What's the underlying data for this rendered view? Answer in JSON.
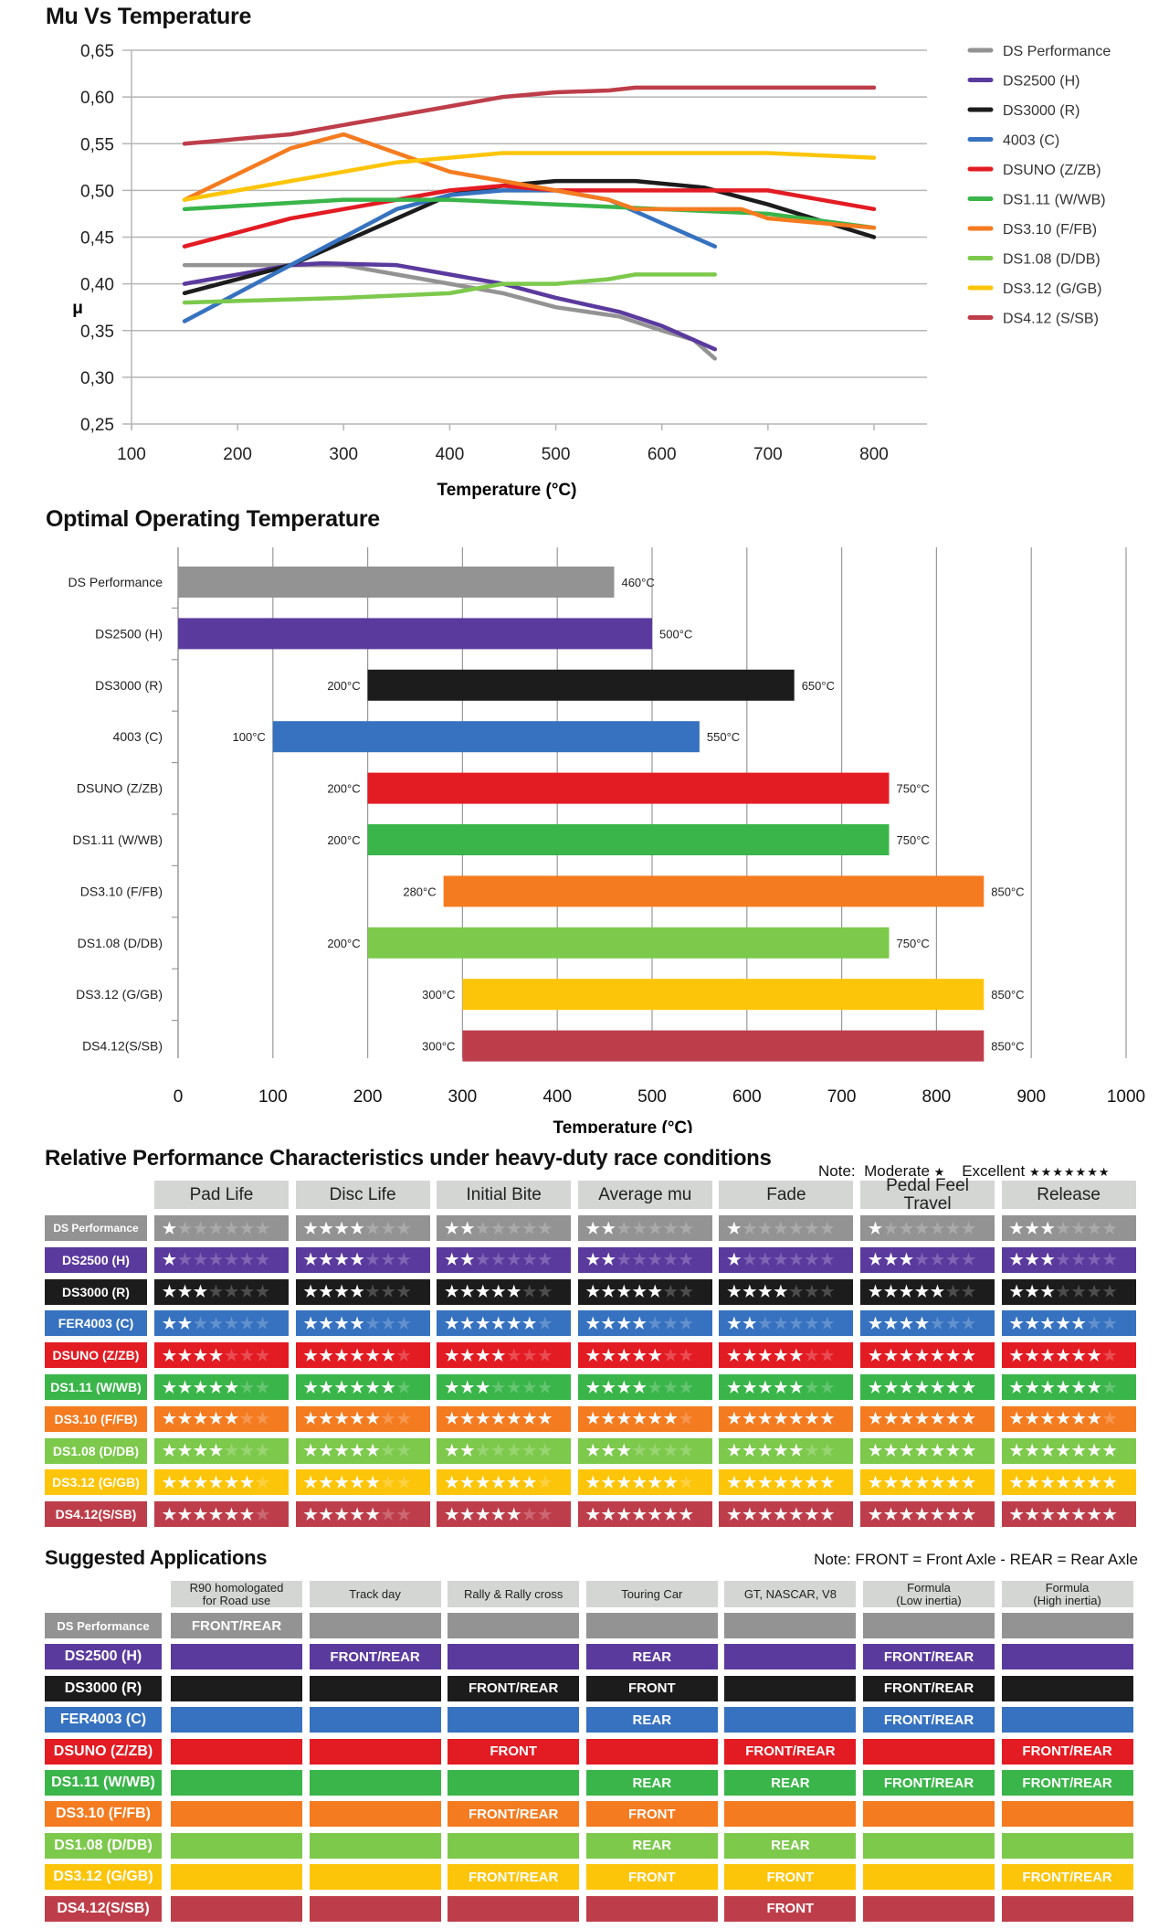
{
  "colors": {
    "DS Performance": "#939393",
    "DS2500": "#5b3a9e",
    "DS3000": "#1c1c1c",
    "4003": "#3672c0",
    "DSUNO": "#e31b23",
    "DS1.11": "#3ab54a",
    "DS3.10": "#f47b20",
    "DS1.08": "#7dc94c",
    "DS3.12": "#fcc50a",
    "DS4.12": "#bd3e4a",
    "header_bg": "#d3d6d3"
  },
  "color_keys": [
    "DS Performance",
    "DS2500",
    "DS3000",
    "4003",
    "DSUNO",
    "DS1.11",
    "DS3.10",
    "DS1.08",
    "DS3.12",
    "DS4.12"
  ],
  "chart_data": [
    {
      "type": "line",
      "title": "Mu Vs Temperature",
      "xlabel": "Temperature (°C)",
      "ylabel": "μ",
      "xlim": [
        100,
        850
      ],
      "ylim": [
        0.25,
        0.65
      ],
      "xticks": [
        "100",
        "200",
        "300",
        "400",
        "500",
        "600",
        "700",
        "800"
      ],
      "yticks": [
        "0,65",
        "0,60",
        "0,55",
        "0,50",
        "0,45",
        "0,40",
        "0,35",
        "0,30",
        "0,25"
      ],
      "grid": "horizontal",
      "legend": "right",
      "series": [
        {
          "name": "DS Performance",
          "points": [
            [
              150,
              0.42
            ],
            [
              250,
              0.42
            ],
            [
              300,
              0.42
            ],
            [
              350,
              0.41
            ],
            [
              400,
              0.4
            ],
            [
              450,
              0.39
            ],
            [
              500,
              0.375
            ],
            [
              560,
              0.365
            ],
            [
              600,
              0.35
            ],
            [
              630,
              0.34
            ],
            [
              650,
              0.32
            ]
          ]
        },
        {
          "name": "DS2500 (H)",
          "points": [
            [
              150,
              0.4
            ],
            [
              250,
              0.42
            ],
            [
              280,
              0.422
            ],
            [
              350,
              0.42
            ],
            [
              400,
              0.41
            ],
            [
              450,
              0.4
            ],
            [
              500,
              0.385
            ],
            [
              560,
              0.37
            ],
            [
              600,
              0.355
            ],
            [
              650,
              0.33
            ]
          ]
        },
        {
          "name": "DS3000 (R)",
          "points": [
            [
              150,
              0.39
            ],
            [
              200,
              0.405
            ],
            [
              250,
              0.42
            ],
            [
              300,
              0.445
            ],
            [
              350,
              0.47
            ],
            [
              400,
              0.495
            ],
            [
              450,
              0.505
            ],
            [
              500,
              0.51
            ],
            [
              575,
              0.51
            ],
            [
              640,
              0.503
            ],
            [
              700,
              0.485
            ],
            [
              800,
              0.45
            ]
          ]
        },
        {
          "name": "4003 (C)",
          "points": [
            [
              150,
              0.36
            ],
            [
              250,
              0.42
            ],
            [
              300,
              0.45
            ],
            [
              350,
              0.48
            ],
            [
              400,
              0.495
            ],
            [
              450,
              0.5
            ],
            [
              500,
              0.5
            ],
            [
              550,
              0.49
            ],
            [
              600,
              0.465
            ],
            [
              650,
              0.44
            ]
          ]
        },
        {
          "name": "DSUNO (Z/ZB)",
          "points": [
            [
              150,
              0.44
            ],
            [
              200,
              0.455
            ],
            [
              250,
              0.47
            ],
            [
              300,
              0.48
            ],
            [
              350,
              0.49
            ],
            [
              400,
              0.5
            ],
            [
              450,
              0.505
            ],
            [
              500,
              0.5
            ],
            [
              650,
              0.5
            ],
            [
              700,
              0.5
            ],
            [
              800,
              0.48
            ]
          ]
        },
        {
          "name": "DS1.11 (W/WB)",
          "points": [
            [
              150,
              0.48
            ],
            [
              300,
              0.49
            ],
            [
              400,
              0.49
            ],
            [
              500,
              0.485
            ],
            [
              600,
              0.48
            ],
            [
              700,
              0.475
            ],
            [
              800,
              0.46
            ]
          ]
        },
        {
          "name": "DS3.10 (F/FB)",
          "points": [
            [
              150,
              0.49
            ],
            [
              250,
              0.545
            ],
            [
              300,
              0.56
            ],
            [
              350,
              0.54
            ],
            [
              400,
              0.52
            ],
            [
              450,
              0.51
            ],
            [
              500,
              0.5
            ],
            [
              550,
              0.49
            ],
            [
              575,
              0.48
            ],
            [
              650,
              0.48
            ],
            [
              675,
              0.48
            ],
            [
              700,
              0.47
            ],
            [
              800,
              0.46
            ]
          ]
        },
        {
          "name": "DS1.08 (D/DB)",
          "points": [
            [
              150,
              0.38
            ],
            [
              300,
              0.385
            ],
            [
              400,
              0.39
            ],
            [
              450,
              0.4
            ],
            [
              500,
              0.4
            ],
            [
              550,
              0.405
            ],
            [
              575,
              0.41
            ],
            [
              650,
              0.41
            ]
          ]
        },
        {
          "name": "DS3.12 (G/GB)",
          "points": [
            [
              150,
              0.49
            ],
            [
              200,
              0.5
            ],
            [
              300,
              0.52
            ],
            [
              350,
              0.53
            ],
            [
              450,
              0.54
            ],
            [
              700,
              0.54
            ],
            [
              800,
              0.535
            ]
          ]
        },
        {
          "name": "DS4.12 (S/SB)",
          "points": [
            [
              150,
              0.55
            ],
            [
              250,
              0.56
            ],
            [
              300,
              0.57
            ],
            [
              400,
              0.59
            ],
            [
              450,
              0.6
            ],
            [
              500,
              0.605
            ],
            [
              550,
              0.607
            ],
            [
              575,
              0.61
            ],
            [
              800,
              0.61
            ]
          ]
        }
      ]
    },
    {
      "type": "bar",
      "orientation": "horizontal-range",
      "title": "Optimal Operating Temperature",
      "xlabel": "Temperature (°C)",
      "xlim": [
        0,
        1000
      ],
      "xticks": [
        "0",
        "100",
        "200",
        "300",
        "400",
        "500",
        "600",
        "700",
        "800",
        "900",
        "1000"
      ],
      "grid": "vertical",
      "categories": [
        "DS Performance",
        "DS2500 (H)",
        "DS3000 (R)",
        "4003 (C)",
        "DSUNO (Z/ZB)",
        "DS1.11 (W/WB)",
        "DS3.10 (F/FB)",
        "DS1.08 (D/DB)",
        "DS3.12 (G/GB)",
        "DS4.12(S/SB)"
      ],
      "ranges": [
        [
          0,
          460
        ],
        [
          0,
          500
        ],
        [
          200,
          650
        ],
        [
          100,
          550
        ],
        [
          200,
          750
        ],
        [
          200,
          750
        ],
        [
          280,
          850
        ],
        [
          200,
          750
        ],
        [
          300,
          850
        ],
        [
          300,
          850
        ]
      ],
      "start_labels": [
        "",
        "",
        "200°C",
        "100°C",
        "200°C",
        "200°C",
        "280°C",
        "200°C",
        "300°C",
        "300°C"
      ],
      "end_labels": [
        "460°C",
        "500°C",
        "650°C",
        "550°C",
        "750°C",
        "750°C",
        "850°C",
        "750°C",
        "850°C",
        "850°C"
      ]
    }
  ],
  "performance": {
    "title": "Relative Performance Characteristics under heavy-duty race conditions",
    "note_label": "Note:",
    "note_moderate": "Moderate",
    "note_excellent": "Excellent",
    "max_stars": 7,
    "columns": [
      "Pad Life",
      "Disc Life",
      "Initial Bite",
      "Average mu",
      "Fade",
      "Pedal Feel Travel",
      "Release"
    ],
    "rows": [
      {
        "label": "DS Performance",
        "ratings": [
          1,
          4,
          2,
          2,
          1,
          1,
          3
        ]
      },
      {
        "label": "DS2500 (H)",
        "ratings": [
          1,
          4,
          2,
          2,
          1,
          3,
          3
        ]
      },
      {
        "label": "DS3000 (R)",
        "ratings": [
          3,
          4,
          5,
          5,
          4,
          5,
          3
        ]
      },
      {
        "label": "FER4003 (C)",
        "ratings": [
          2,
          4,
          6,
          4,
          2,
          4,
          5
        ]
      },
      {
        "label": "DSUNO (Z/ZB)",
        "ratings": [
          4,
          6,
          4,
          5,
          5,
          7,
          6
        ]
      },
      {
        "label": "DS1.11 (W/WB)",
        "ratings": [
          5,
          6,
          3,
          4,
          5,
          7,
          6
        ]
      },
      {
        "label": "DS3.10 (F/FB)",
        "ratings": [
          5,
          5,
          7,
          6,
          7,
          7,
          6
        ]
      },
      {
        "label": "DS1.08 (D/DB)",
        "ratings": [
          4,
          5,
          2,
          3,
          5,
          7,
          7
        ]
      },
      {
        "label": "DS3.12 (G/GB)",
        "ratings": [
          6,
          5,
          6,
          6,
          7,
          7,
          7
        ]
      },
      {
        "label": "DS4.12(S/SB)",
        "ratings": [
          6,
          5,
          5,
          7,
          7,
          7,
          7
        ]
      }
    ]
  },
  "applications": {
    "title": "Suggested Applications",
    "note": "Note: FRONT = Front Axle - REAR = Rear Axle",
    "columns": [
      "R90 homologated\nfor Road use",
      "Track day",
      "Rally & Rally cross",
      "Touring Car",
      "GT, NASCAR, V8",
      "Formula\n(Low inertia)",
      "Formula\n(High inertia)"
    ],
    "rows": [
      {
        "label": "DS Performance",
        "cells": [
          "FRONT/REAR",
          "",
          "",
          "",
          "",
          "",
          ""
        ]
      },
      {
        "label": "DS2500 (H)",
        "cells": [
          "",
          "FRONT/REAR",
          "",
          "REAR",
          "",
          "FRONT/REAR",
          ""
        ]
      },
      {
        "label": "DS3000 (R)",
        "cells": [
          "",
          "",
          "FRONT/REAR",
          "FRONT",
          "",
          "FRONT/REAR",
          ""
        ]
      },
      {
        "label": "FER4003 (C)",
        "cells": [
          "",
          "",
          "",
          "REAR",
          "",
          "FRONT/REAR",
          ""
        ]
      },
      {
        "label": "DSUNO (Z/ZB)",
        "cells": [
          "",
          "",
          "FRONT",
          "",
          "FRONT/REAR",
          "",
          "FRONT/REAR"
        ]
      },
      {
        "label": "DS1.11 (W/WB)",
        "cells": [
          "",
          "",
          "",
          "REAR",
          "REAR",
          "FRONT/REAR",
          "FRONT/REAR"
        ]
      },
      {
        "label": "DS3.10 (F/FB)",
        "cells": [
          "",
          "",
          "FRONT/REAR",
          "FRONT",
          "",
          "",
          ""
        ]
      },
      {
        "label": "DS1.08 (D/DB)",
        "cells": [
          "",
          "",
          "",
          "REAR",
          "REAR",
          "",
          ""
        ]
      },
      {
        "label": "DS3.12 (G/GB)",
        "cells": [
          "",
          "",
          "FRONT/REAR",
          "FRONT",
          "FRONT",
          "",
          "FRONT/REAR"
        ]
      },
      {
        "label": "DS4.12(S/SB)",
        "cells": [
          "",
          "",
          "",
          "",
          "FRONT",
          "",
          ""
        ]
      }
    ]
  }
}
